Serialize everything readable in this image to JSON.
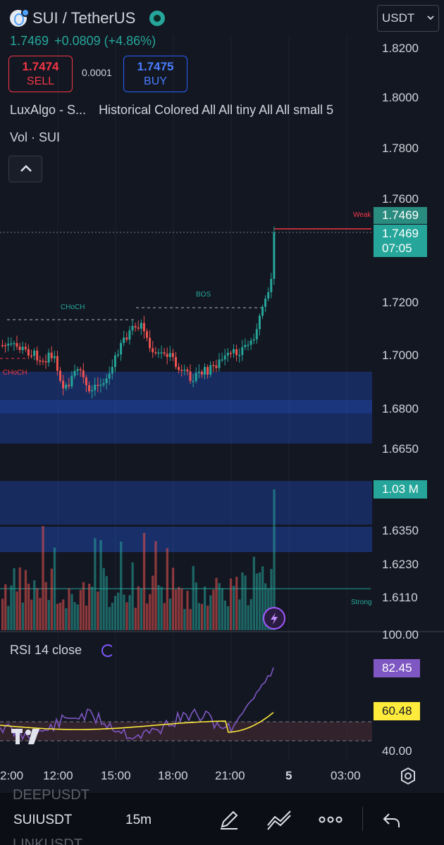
{
  "header": {
    "symbol": "SUI / TetherUS",
    "last_price": "1.7469",
    "change": "+0.0809 (+4.86%)",
    "sell_price": "1.7474",
    "sell_label": "SELL",
    "spread": "0.0001",
    "buy_price": "1.7475",
    "buy_label": "BUY",
    "currency_select": "USDT",
    "indicator_name": "LuxAlgo - S...",
    "indicator_params": "Historical Colored All All tiny All All small 5",
    "volume_label": "Vol · SUI"
  },
  "price_axis": {
    "ticks": [
      "1.8200",
      "1.8000",
      "1.7800",
      "1.7600",
      "1.7200",
      "1.7000",
      "1.6800",
      "1.6650",
      "1.6350",
      "1.6230",
      "1.6110"
    ],
    "current_price_tag": "1.7469",
    "current_price_tag2": "1.7469",
    "countdown": "07:05",
    "volume_tag": "1.03 M"
  },
  "chart_labels": {
    "weak_high": "Weak",
    "strong_low": "Strong",
    "choch_1": "CHoCH",
    "choch_2": "CHoCH",
    "bos": "BOS"
  },
  "rsi": {
    "label": "RSI 14 close",
    "axis_top": "100.00",
    "axis_bottom": "40.00",
    "rsi_value": "82.45",
    "ma_value": "60.48"
  },
  "time_axis": [
    "2:00",
    "12:00",
    "15:00",
    "18:00",
    "21:00",
    "5",
    "03:00"
  ],
  "bottom_bar": {
    "symbol": "SUIUSDT",
    "timeframe": "15m",
    "ghost_above": "DEEPUSDT",
    "ghost_below": "LINKUSDT"
  },
  "colors": {
    "up": "#26a69a",
    "down": "#ef5350",
    "background": "#131722",
    "rsi_line": "#7e57c2",
    "rsi_ma": "#ffeb3b",
    "zone": "#2962ff"
  },
  "icons": [
    "coin-icon",
    "market-open-icon",
    "chevron-up-icon",
    "chevron-down-icon",
    "refresh-icon",
    "lightning-icon",
    "tradingview-logo",
    "settings-icon",
    "pencil-icon",
    "drawing-tools-icon",
    "more-icon",
    "undo-icon"
  ]
}
